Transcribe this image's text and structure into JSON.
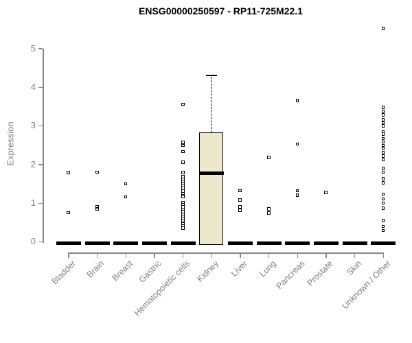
{
  "title": "ENSG00000250597 - RP11-725M22.1",
  "chart_data": {
    "type": "boxplot",
    "title": "ENSG00000250597 - RP11-725M22.1",
    "xlabel": "",
    "ylabel": "Expression",
    "ylim": [
      0,
      5
    ],
    "yticks": [
      0,
      1,
      2,
      3,
      4,
      5
    ],
    "grid": false,
    "legend": "none",
    "axis_color": "#888888",
    "text_color": "#808080",
    "point_color": "#000000",
    "box_fill": "#EDE7CB",
    "categories": [
      "Bladder",
      "Brain",
      "Breast",
      "Gastric",
      "Hematopoietic cells",
      "Kidney",
      "Liver",
      "Lung",
      "Pancreas",
      "Prostate",
      "Skin",
      "Unknown / Other"
    ],
    "series": [
      {
        "category": "Bladder",
        "zero_bar": true,
        "points": [
          1.79,
          0.75
        ]
      },
      {
        "category": "Brain",
        "zero_bar": true,
        "points": [
          1.8,
          0.91,
          0.84
        ]
      },
      {
        "category": "Breast",
        "zero_bar": true,
        "points": [
          1.5,
          1.16
        ]
      },
      {
        "category": "Gastric",
        "zero_bar": true,
        "points": []
      },
      {
        "category": "Hematopoietic cells",
        "zero_bar": true,
        "points": [
          3.56,
          2.57,
          2.49,
          2.33,
          2.06,
          1.79,
          1.68,
          1.62,
          1.56,
          1.5,
          1.44,
          1.38,
          1.31,
          1.25,
          1.17,
          1.02,
          0.96,
          0.9,
          0.84,
          0.78,
          0.72,
          0.66,
          0.6,
          0.54,
          0.47,
          0.41,
          0.35
        ]
      },
      {
        "category": "Kidney",
        "zero_bar": false,
        "points": [],
        "box": {
          "whisker_high": 4.31,
          "q3": 2.84,
          "median": 1.78,
          "q1": 0,
          "whisker_low": 0
        }
      },
      {
        "category": "Liver",
        "zero_bar": true,
        "points": [
          1.32,
          1.08,
          0.9,
          0.81
        ]
      },
      {
        "category": "Lung",
        "zero_bar": true,
        "points": [
          2.18,
          0.85,
          0.74
        ]
      },
      {
        "category": "Pancreas",
        "zero_bar": true,
        "points": [
          3.65,
          2.53,
          1.32,
          1.21
        ]
      },
      {
        "category": "Prostate",
        "zero_bar": true,
        "points": [
          1.28
        ]
      },
      {
        "category": "Skin",
        "zero_bar": true,
        "points": []
      },
      {
        "category": "Unknown / Other",
        "zero_bar": true,
        "points": [
          5.52,
          3.48,
          3.37,
          3.28,
          3.16,
          3.08,
          3.0,
          2.85,
          2.78,
          2.67,
          2.58,
          2.49,
          2.42,
          2.31,
          2.22,
          2.12,
          1.9,
          1.8,
          1.63,
          1.52,
          1.23,
          1.11,
          1.0,
          0.87,
          0.55,
          0.4,
          0.29
        ]
      }
    ]
  }
}
